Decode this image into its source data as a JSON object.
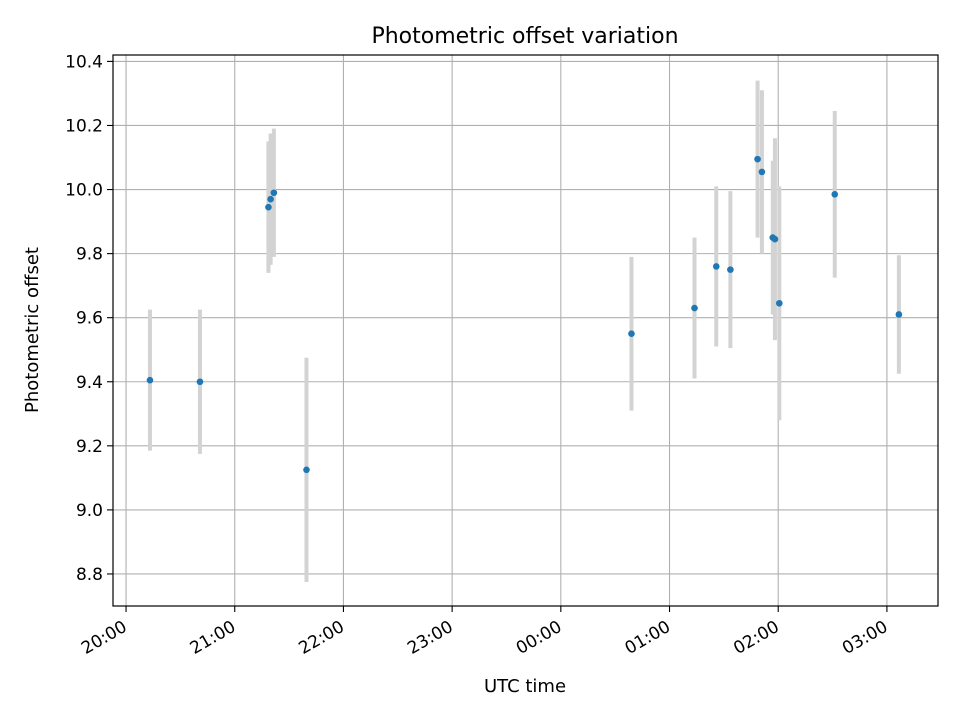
{
  "chart_data": {
    "type": "scatter",
    "title": "Photometric offset variation",
    "xlabel": "UTC time",
    "ylabel": "Photometric offset",
    "x_unit": "hours since 20:00 UTC",
    "xlim": [
      -0.12,
      7.47
    ],
    "ylim": [
      8.7,
      10.42
    ],
    "x_ticks": [
      {
        "value": 0,
        "label": "20:00"
      },
      {
        "value": 1,
        "label": "21:00"
      },
      {
        "value": 2,
        "label": "22:00"
      },
      {
        "value": 3,
        "label": "23:00"
      },
      {
        "value": 4,
        "label": "00:00"
      },
      {
        "value": 5,
        "label": "01:00"
      },
      {
        "value": 6,
        "label": "02:00"
      },
      {
        "value": 7,
        "label": "03:00"
      }
    ],
    "y_ticks": [
      {
        "value": 8.8,
        "label": "8.8"
      },
      {
        "value": 9.0,
        "label": "9.0"
      },
      {
        "value": 9.2,
        "label": "9.2"
      },
      {
        "value": 9.4,
        "label": "9.4"
      },
      {
        "value": 9.6,
        "label": "9.6"
      },
      {
        "value": 9.8,
        "label": "9.8"
      },
      {
        "value": 10.0,
        "label": "10.0"
      },
      {
        "value": 10.2,
        "label": "10.2"
      },
      {
        "value": 10.4,
        "label": "10.4"
      }
    ],
    "grid": true,
    "point_color": "#1f77b4",
    "errorbar_color": "#d3d3d3",
    "points": [
      {
        "x": 0.22,
        "y": 9.405,
        "err": 0.22
      },
      {
        "x": 0.68,
        "y": 9.4,
        "err": 0.225
      },
      {
        "x": 1.31,
        "y": 9.945,
        "err": 0.205
      },
      {
        "x": 1.33,
        "y": 9.97,
        "err": 0.205
      },
      {
        "x": 1.36,
        "y": 9.99,
        "err": 0.2
      },
      {
        "x": 1.66,
        "y": 9.125,
        "err": 0.35
      },
      {
        "x": 4.65,
        "y": 9.55,
        "err": 0.24
      },
      {
        "x": 5.23,
        "y": 9.63,
        "err": 0.22
      },
      {
        "x": 5.43,
        "y": 9.76,
        "err": 0.25
      },
      {
        "x": 5.56,
        "y": 9.75,
        "err": 0.245
      },
      {
        "x": 5.81,
        "y": 10.095,
        "err": 0.245
      },
      {
        "x": 5.85,
        "y": 10.055,
        "err": 0.255
      },
      {
        "x": 5.95,
        "y": 9.85,
        "err": 0.24
      },
      {
        "x": 5.97,
        "y": 9.845,
        "err": 0.315
      },
      {
        "x": 6.01,
        "y": 9.645,
        "err": 0.365
      },
      {
        "x": 6.52,
        "y": 9.985,
        "err": 0.26
      },
      {
        "x": 7.11,
        "y": 9.61,
        "err": 0.185
      }
    ]
  }
}
